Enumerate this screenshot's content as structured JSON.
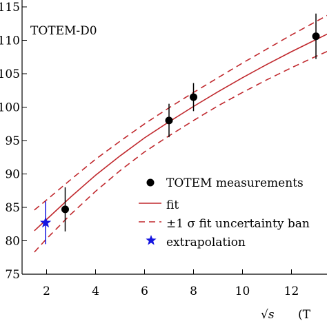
{
  "chart_data": {
    "type": "scatter",
    "annotation": "TOTEM-D0",
    "x_ticks": [
      2,
      4,
      6,
      8,
      10,
      12
    ],
    "y_ticks": [
      75,
      80,
      85,
      90,
      95,
      100,
      105,
      110,
      115
    ],
    "y_tick_labels": [
      "75",
      "80",
      "85",
      "90",
      "95",
      "100",
      "105",
      "110",
      "115"
    ],
    "xlim": [
      1,
      14
    ],
    "ylim": [
      75,
      115
    ],
    "xlabel_symbol": "√s",
    "xlabel_text": "(T",
    "grid": false,
    "legend_position": "lower-right",
    "legend": [
      {
        "label": "TOTEM measurements",
        "marker": "dot"
      },
      {
        "label": "fit",
        "marker": "solid-line"
      },
      {
        "label": "±1 σ fit uncertainty ban",
        "marker": "dashed-line"
      },
      {
        "label": "extrapolation",
        "marker": "star"
      }
    ],
    "series": [
      {
        "kind": "points",
        "color": "#000000",
        "points": [
          {
            "x": 2.76,
            "y": 84.7,
            "err_low": 3.3,
            "err_high": 3.3
          },
          {
            "x": 7.0,
            "y": 98.0,
            "err_low": 2.5,
            "err_high": 2.5
          },
          {
            "x": 8.0,
            "y": 101.5,
            "err_low": 2.1,
            "err_high": 2.1
          },
          {
            "x": 13.0,
            "y": 110.6,
            "err_low": 3.4,
            "err_high": 3.4
          }
        ]
      },
      {
        "kind": "fit-line",
        "color": "#c0282d",
        "x": [
          1.5,
          2,
          3,
          4,
          5,
          6,
          7,
          8,
          9,
          10,
          11,
          12,
          13,
          14
        ],
        "y": [
          81.5,
          83.2,
          86.6,
          89.8,
          92.7,
          95.4,
          97.8,
          100.1,
          102.3,
          104.4,
          106.4,
          108.3,
          110.1,
          111.9
        ]
      },
      {
        "kind": "upper-band",
        "color": "#c0282d",
        "x": [
          1.5,
          2,
          3,
          4,
          5,
          6,
          7,
          8,
          9,
          10,
          11,
          12,
          13,
          14
        ],
        "y": [
          84.6,
          86.1,
          89.2,
          92.2,
          94.9,
          97.5,
          99.9,
          102.2,
          104.4,
          106.6,
          108.7,
          110.8,
          112.8,
          114.8
        ]
      },
      {
        "kind": "lower-band",
        "color": "#c0282d",
        "x": [
          1.5,
          2,
          3,
          4,
          5,
          6,
          7,
          8,
          9,
          10,
          11,
          12,
          13,
          14
        ],
        "y": [
          78.3,
          80.3,
          84.0,
          87.4,
          90.5,
          93.3,
          95.7,
          98.0,
          100.2,
          102.2,
          104.1,
          105.9,
          107.6,
          109.2
        ]
      },
      {
        "kind": "extrapolation",
        "color": "#1515e0",
        "points": [
          {
            "x": 1.96,
            "y": 82.7,
            "err_low": 3.2,
            "err_high": 3.2
          }
        ]
      }
    ]
  }
}
